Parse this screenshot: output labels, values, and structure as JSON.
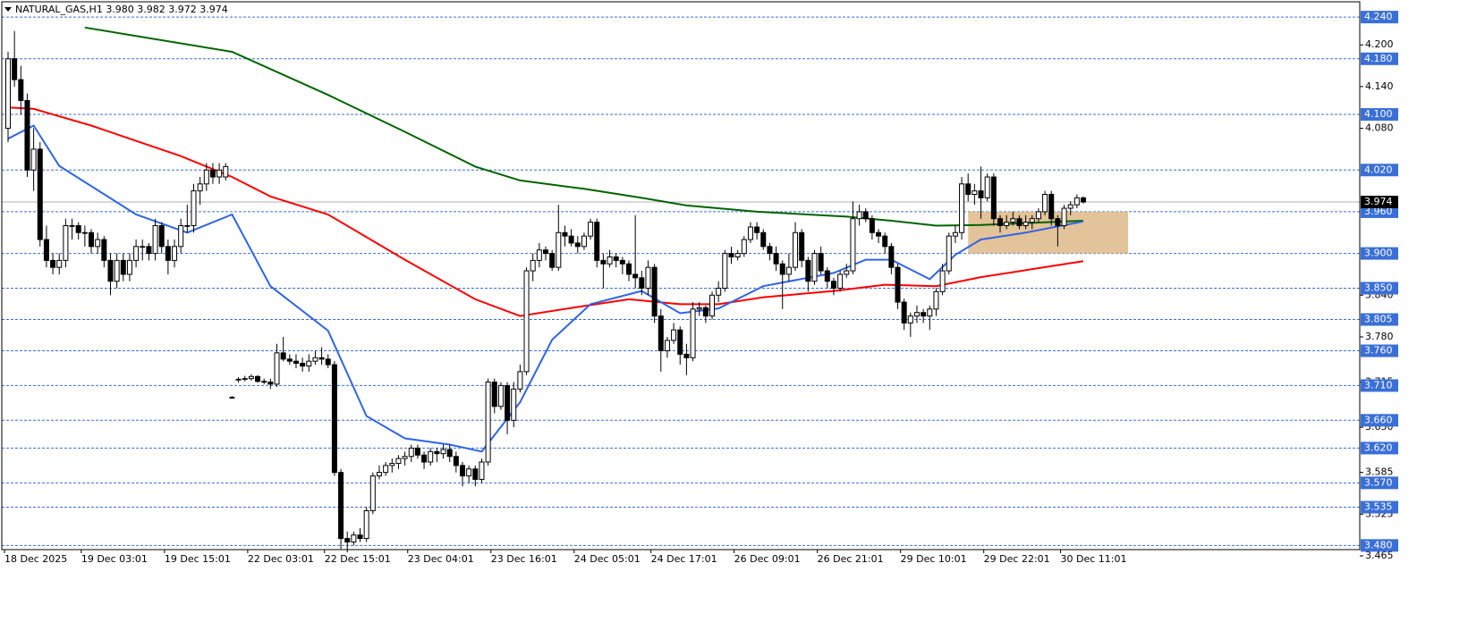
{
  "chart_data": {
    "type": "candlestick",
    "title": "NATURAL_GAS,H1  3.980 3.982 3.972 3.974",
    "categories": [
      "18 Dec 2025",
      null,
      null,
      null,
      null,
      null,
      null,
      null,
      null,
      null,
      null,
      null,
      "19 Dec 03:01",
      null,
      null,
      null,
      null,
      null,
      null,
      null,
      null,
      null,
      null,
      null,
      null,
      "19 Dec 15:01",
      null,
      null,
      null,
      null,
      null,
      null,
      null,
      null,
      null,
      null,
      null,
      null,
      "22 Dec 03:01",
      null,
      null,
      null,
      null,
      null,
      null,
      null,
      null,
      null,
      null,
      null,
      "22 Dec 15:01",
      null,
      null,
      null,
      null,
      null,
      null,
      null,
      null,
      null,
      null,
      null,
      null,
      "23 Dec 04:01",
      null,
      null,
      null,
      null,
      null,
      null,
      null,
      null,
      null,
      null,
      null,
      null,
      "23 Dec 16:01",
      null,
      null,
      null,
      null,
      null,
      null,
      null,
      null,
      null,
      null,
      null,
      null,
      "24 Dec 05:01",
      null,
      null,
      null,
      null,
      null,
      null,
      null,
      null,
      null,
      null,
      null,
      "24 Dec 17:01",
      null,
      null,
      null,
      null,
      null,
      null,
      null,
      null,
      null,
      null,
      null,
      null,
      "26 Dec 09:01",
      null,
      null,
      null,
      null,
      null,
      null,
      null,
      null,
      null,
      null,
      null,
      null,
      "26 Dec 21:01",
      null,
      null,
      null,
      null,
      null,
      null,
      null,
      null,
      null,
      null,
      null,
      null,
      "29 Dec 10:01",
      null,
      null,
      null,
      null,
      null,
      null,
      null,
      null,
      null,
      null,
      null,
      null,
      "29 Dec 22:01",
      null,
      null,
      null,
      null,
      null,
      null,
      null,
      null,
      null,
      null,
      null,
      "30 Dec 11:01",
      null,
      null,
      null
    ],
    "open": [
      4.08,
      4.18,
      4.15,
      4.12,
      4.02,
      4.05,
      3.92,
      3.89,
      3.88,
      3.89,
      3.94,
      3.94,
      3.93,
      3.93,
      3.91,
      3.92,
      3.89,
      3.86,
      3.89,
      3.87,
      3.89,
      3.91,
      3.91,
      3.9,
      3.94,
      3.91,
      3.89,
      3.91,
      3.94,
      3.94,
      3.99,
      4.0,
      4.02,
      4.01,
      4.01,
      3.693,
      3.718,
      3.719,
      3.72,
      3.723,
      3.716,
      3.715,
      3.712,
      3.757,
      3.748,
      3.745,
      3.742,
      3.738,
      3.745,
      3.75,
      3.748,
      3.74,
      3.585,
      3.49,
      3.485,
      3.495,
      3.49,
      3.53,
      3.58,
      3.585,
      3.595,
      3.598,
      3.605,
      3.608,
      3.62,
      3.61,
      3.6,
      3.615,
      3.612,
      3.618,
      3.608,
      3.595,
      3.58,
      3.59,
      3.575,
      3.6,
      3.715,
      3.68,
      3.71,
      3.66,
      3.705,
      3.73,
      3.875,
      3.89,
      3.905,
      3.9,
      3.88,
      3.93,
      3.925,
      3.915,
      3.91,
      3.925,
      3.945,
      3.89,
      3.885,
      3.895,
      3.89,
      3.885,
      3.87,
      3.865,
      3.85,
      3.88,
      3.81,
      3.76,
      3.775,
      3.79,
      3.755,
      3.75,
      3.82,
      3.822,
      3.81,
      3.84,
      3.85,
      3.9,
      3.895,
      3.9,
      3.92,
      3.938,
      3.93,
      3.91,
      3.9,
      3.885,
      3.87,
      3.88,
      3.93,
      3.89,
      3.86,
      3.9,
      3.875,
      3.86,
      3.85,
      3.87,
      3.875,
      3.95,
      3.96,
      3.95,
      3.93,
      3.925,
      3.91,
      3.88,
      3.83,
      3.8,
      3.81,
      3.815,
      3.81,
      3.82,
      3.845,
      3.875,
      3.925,
      3.93,
      4.0,
      3.985,
      3.99,
      3.98,
      4.01,
      3.95,
      3.94,
      3.945,
      3.95,
      3.94,
      3.945,
      3.95,
      3.96,
      3.985,
      3.95,
      3.94,
      3.965,
      3.97,
      3.98
    ],
    "high": [
      4.19,
      4.22,
      4.17,
      4.13,
      4.08,
      4.06,
      3.94,
      3.9,
      3.9,
      3.95,
      3.95,
      3.945,
      3.94,
      3.935,
      3.93,
      3.925,
      3.9,
      3.9,
      3.9,
      3.9,
      3.92,
      3.92,
      3.915,
      3.95,
      3.945,
      3.92,
      3.92,
      3.95,
      3.97,
      4.0,
      4.01,
      4.03,
      4.03,
      4.03,
      4.03,
      3.695,
      3.722,
      3.724,
      3.726,
      3.725,
      3.72,
      3.72,
      3.77,
      3.78,
      3.755,
      3.755,
      3.75,
      3.755,
      3.76,
      3.765,
      3.755,
      3.745,
      3.59,
      3.5,
      3.5,
      3.505,
      3.535,
      3.585,
      3.595,
      3.6,
      3.605,
      3.61,
      3.615,
      3.625,
      3.625,
      3.615,
      3.62,
      3.62,
      3.625,
      3.625,
      3.615,
      3.6,
      3.595,
      3.595,
      3.605,
      3.72,
      3.72,
      3.715,
      3.715,
      3.715,
      3.74,
      3.88,
      3.9,
      3.915,
      3.91,
      3.905,
      3.97,
      3.94,
      3.935,
      3.925,
      3.93,
      3.95,
      3.95,
      3.9,
      3.905,
      3.9,
      3.895,
      3.89,
      3.955,
      3.875,
      3.89,
      3.885,
      3.82,
      3.78,
      3.8,
      3.795,
      3.77,
      3.83,
      3.83,
      3.825,
      3.845,
      3.86,
      3.905,
      3.91,
      3.905,
      3.925,
      3.945,
      3.945,
      3.935,
      3.915,
      3.91,
      3.89,
      3.9,
      3.945,
      3.935,
      3.895,
      3.905,
      3.91,
      3.88,
      3.865,
      3.875,
      3.885,
      3.975,
      3.97,
      3.965,
      3.955,
      3.935,
      3.93,
      3.915,
      3.885,
      3.835,
      3.815,
      3.825,
      3.82,
      3.825,
      3.85,
      3.885,
      3.93,
      3.94,
      4.01,
      4.015,
      4.0,
      4.025,
      4.015,
      4.015,
      3.955,
      3.955,
      3.96,
      3.955,
      3.955,
      3.955,
      3.965,
      3.99,
      3.99,
      3.955,
      3.97,
      3.975,
      3.985,
      3.982
    ],
    "low": [
      4.06,
      4.14,
      4.1,
      4.01,
      3.99,
      3.91,
      3.88,
      3.87,
      3.87,
      3.88,
      3.92,
      3.92,
      3.91,
      3.9,
      3.9,
      3.88,
      3.84,
      3.85,
      3.86,
      3.86,
      3.88,
      3.89,
      3.89,
      3.89,
      3.9,
      3.87,
      3.88,
      3.9,
      3.93,
      3.93,
      3.97,
      3.99,
      4.0,
      4.0,
      4.005,
      3.691,
      3.714,
      3.716,
      3.717,
      3.714,
      3.712,
      3.705,
      3.708,
      3.745,
      3.74,
      3.735,
      3.73,
      3.73,
      3.74,
      3.74,
      3.735,
      3.58,
      3.475,
      3.47,
      3.48,
      3.485,
      3.485,
      3.525,
      3.575,
      3.58,
      3.585,
      3.59,
      3.595,
      3.6,
      3.605,
      3.59,
      3.595,
      3.6,
      3.605,
      3.6,
      3.585,
      3.565,
      3.57,
      3.565,
      3.57,
      3.595,
      3.67,
      3.675,
      3.64,
      3.65,
      3.7,
      3.725,
      3.86,
      3.88,
      3.89,
      3.875,
      3.875,
      3.91,
      3.91,
      3.9,
      3.905,
      3.92,
      3.88,
      3.85,
      3.88,
      3.88,
      3.87,
      3.86,
      3.85,
      3.84,
      3.84,
      3.8,
      3.73,
      3.75,
      3.77,
      3.74,
      3.725,
      3.745,
      3.81,
      3.8,
      3.805,
      3.83,
      3.845,
      3.885,
      3.89,
      3.895,
      3.915,
      3.92,
      3.905,
      3.89,
      3.875,
      3.82,
      3.86,
      3.875,
      3.88,
      3.845,
      3.855,
      3.87,
      3.85,
      3.84,
      3.845,
      3.865,
      3.87,
      3.94,
      3.945,
      3.92,
      3.915,
      3.9,
      3.87,
      3.82,
      3.79,
      3.78,
      3.8,
      3.8,
      3.79,
      3.81,
      3.84,
      3.87,
      3.915,
      3.92,
      3.975,
      3.97,
      3.95,
      3.975,
      3.94,
      3.93,
      3.935,
      3.94,
      3.935,
      3.935,
      3.935,
      3.945,
      3.955,
      3.94,
      3.91,
      3.935,
      3.955,
      3.965,
      3.972
    ],
    "close": [
      4.18,
      4.15,
      4.12,
      4.02,
      4.05,
      3.92,
      3.89,
      3.88,
      3.89,
      3.94,
      3.94,
      3.93,
      3.93,
      3.91,
      3.92,
      3.89,
      3.86,
      3.89,
      3.87,
      3.89,
      3.91,
      3.91,
      3.9,
      3.94,
      3.91,
      3.89,
      3.91,
      3.94,
      3.94,
      3.99,
      4.0,
      4.02,
      4.01,
      4.02,
      4.025,
      3.693,
      3.719,
      3.72,
      3.723,
      3.716,
      3.715,
      3.712,
      3.757,
      3.748,
      3.745,
      3.742,
      3.738,
      3.745,
      3.75,
      3.748,
      3.74,
      3.585,
      3.49,
      3.485,
      3.495,
      3.49,
      3.53,
      3.58,
      3.585,
      3.595,
      3.598,
      3.605,
      3.608,
      3.62,
      3.61,
      3.6,
      3.615,
      3.612,
      3.618,
      3.608,
      3.595,
      3.58,
      3.59,
      3.575,
      3.6,
      3.715,
      3.68,
      3.71,
      3.66,
      3.705,
      3.73,
      3.875,
      3.89,
      3.905,
      3.9,
      3.88,
      3.93,
      3.925,
      3.915,
      3.91,
      3.925,
      3.945,
      3.89,
      3.885,
      3.895,
      3.89,
      3.885,
      3.87,
      3.865,
      3.85,
      3.88,
      3.81,
      3.76,
      3.775,
      3.79,
      3.755,
      3.75,
      3.82,
      3.822,
      3.81,
      3.84,
      3.85,
      3.9,
      3.895,
      3.9,
      3.92,
      3.938,
      3.93,
      3.91,
      3.9,
      3.885,
      3.87,
      3.88,
      3.93,
      3.89,
      3.86,
      3.9,
      3.875,
      3.86,
      3.85,
      3.87,
      3.875,
      3.95,
      3.96,
      3.95,
      3.93,
      3.925,
      3.91,
      3.88,
      3.83,
      3.8,
      3.81,
      3.815,
      3.81,
      3.82,
      3.845,
      3.875,
      3.925,
      3.93,
      4.0,
      3.985,
      3.99,
      3.98,
      4.01,
      3.95,
      3.94,
      3.945,
      3.95,
      3.94,
      3.945,
      3.95,
      3.96,
      3.985,
      3.95,
      3.94,
      3.965,
      3.97,
      3.98,
      3.974
    ],
    "bull_color": "#ffffff",
    "bear_color": "#000000",
    "series": [
      {
        "color": "#006400",
        "x": [
          12,
          35,
          50,
          62,
          73,
          80,
          90,
          99,
          106,
          117,
          131,
          138,
          145,
          152,
          160,
          168
        ],
        "values": [
          4.225,
          4.19,
          4.128,
          4.075,
          4.025,
          4.005,
          3.993,
          3.98,
          3.969,
          3.96,
          3.953,
          3.947,
          3.94,
          3.941,
          3.944,
          3.947
        ]
      },
      {
        "color": "#ff0000",
        "x": [
          0,
          4,
          13,
          27,
          35,
          41,
          50,
          62,
          73,
          80,
          89,
          97,
          105,
          111,
          118,
          129,
          137,
          145,
          152,
          159,
          168
        ],
        "values": [
          4.11,
          4.108,
          4.084,
          4.04,
          4.01,
          3.982,
          3.956,
          3.891,
          3.834,
          3.81,
          3.823,
          3.834,
          3.827,
          3.827,
          3.837,
          3.846,
          3.855,
          3.853,
          3.866,
          3.876,
          3.889
        ]
      },
      {
        "color": "#2f64e6",
        "x": [
          0,
          4,
          8,
          20,
          28,
          35,
          41,
          50,
          56,
          62,
          69,
          74,
          80,
          85,
          91,
          99,
          105,
          111,
          118,
          129,
          134,
          138,
          144,
          148,
          152,
          159,
          168
        ],
        "values": [
          4.065,
          4.084,
          4.026,
          3.956,
          3.93,
          3.956,
          3.853,
          3.789,
          3.666,
          3.634,
          3.625,
          3.615,
          3.686,
          3.776,
          3.827,
          3.846,
          3.814,
          3.821,
          3.853,
          3.872,
          3.891,
          3.891,
          3.863,
          3.898,
          3.92,
          3.93,
          3.946
        ]
      }
    ],
    "rectangle": {
      "x": [
        150,
        175
      ],
      "y": [
        3.96,
        3.9
      ],
      "color": "#deb887"
    },
    "levels": [
      {
        "value": 4.24,
        "label": "4.240"
      },
      {
        "value": 4.18,
        "label": "4.180"
      },
      {
        "value": 4.1,
        "label": "4.100"
      },
      {
        "value": 4.02,
        "label": "4.020"
      },
      {
        "value": 3.96,
        "label": "3.960"
      },
      {
        "value": 3.9,
        "label": "3.900"
      },
      {
        "value": 3.85,
        "label": "3.850"
      },
      3.805,
      {
        "value": 3.76,
        "label": "3.760"
      },
      {
        "value": 3.71,
        "label": "3.710"
      },
      {
        "value": 3.66,
        "label": "3.660"
      },
      {
        "value": 3.62,
        "label": "3.620"
      },
      {
        "value": 3.57,
        "label": "3.570"
      },
      3.535,
      {
        "value": 3.48,
        "label": "3.480"
      }
    ],
    "levels_color": "#3a6fd8",
    "last_price": 3.974,
    "ylim": [
      3.465,
      4.262
    ],
    "yticks": [
      {
        "value": 4.2,
        "label": "4.200"
      },
      {
        "value": 4.14,
        "label": "4.140"
      },
      {
        "value": 4.08,
        "label": "4.080"
      },
      {
        "value": 3.84,
        "label": "3.840"
      },
      {
        "value": 3.78,
        "label": "3.780"
      },
      3.715,
      {
        "value": 3.65,
        "label": "3.650"
      },
      3.585,
      3.525,
      3.465
    ]
  }
}
